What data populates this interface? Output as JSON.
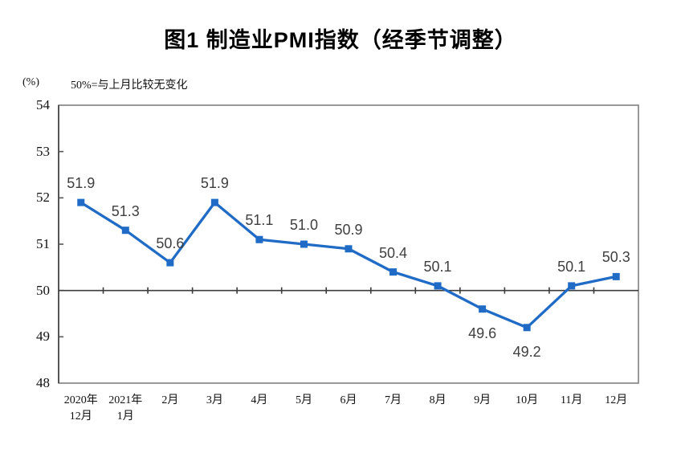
{
  "title": "图1 制造业PMI指数（经季节调整）",
  "unit_label": "(%)",
  "note": "50%=与上月比较无变化",
  "chart_data": {
    "type": "line",
    "title": "图1 制造业PMI指数（经季节调整）",
    "ylabel": "(%)",
    "annotation": "50%=与上月比较无变化",
    "categories": [
      "2020年\n12月",
      "2021年\n1月",
      "2月",
      "3月",
      "4月",
      "5月",
      "6月",
      "7月",
      "8月",
      "9月",
      "10月",
      "11月",
      "12月"
    ],
    "series": [
      {
        "name": "制造业PMI",
        "values": [
          51.9,
          51.3,
          50.6,
          51.9,
          51.1,
          51.0,
          50.9,
          50.4,
          50.1,
          49.6,
          49.2,
          50.1,
          50.3
        ]
      }
    ],
    "ylim": [
      48,
      54
    ],
    "yticks": [
      48,
      49,
      50,
      51,
      52,
      53,
      54
    ],
    "reference_line": 50,
    "grid": false,
    "legend_position": "none",
    "line_color": "#1f6bc5",
    "marker_shape": "square",
    "box_color": "#7f7f7f",
    "axis_color": "#555555",
    "ref_line_color": "#3c3c3c",
    "label_color": "#3f3f3f",
    "labels_below_indices": [
      9,
      10
    ]
  }
}
